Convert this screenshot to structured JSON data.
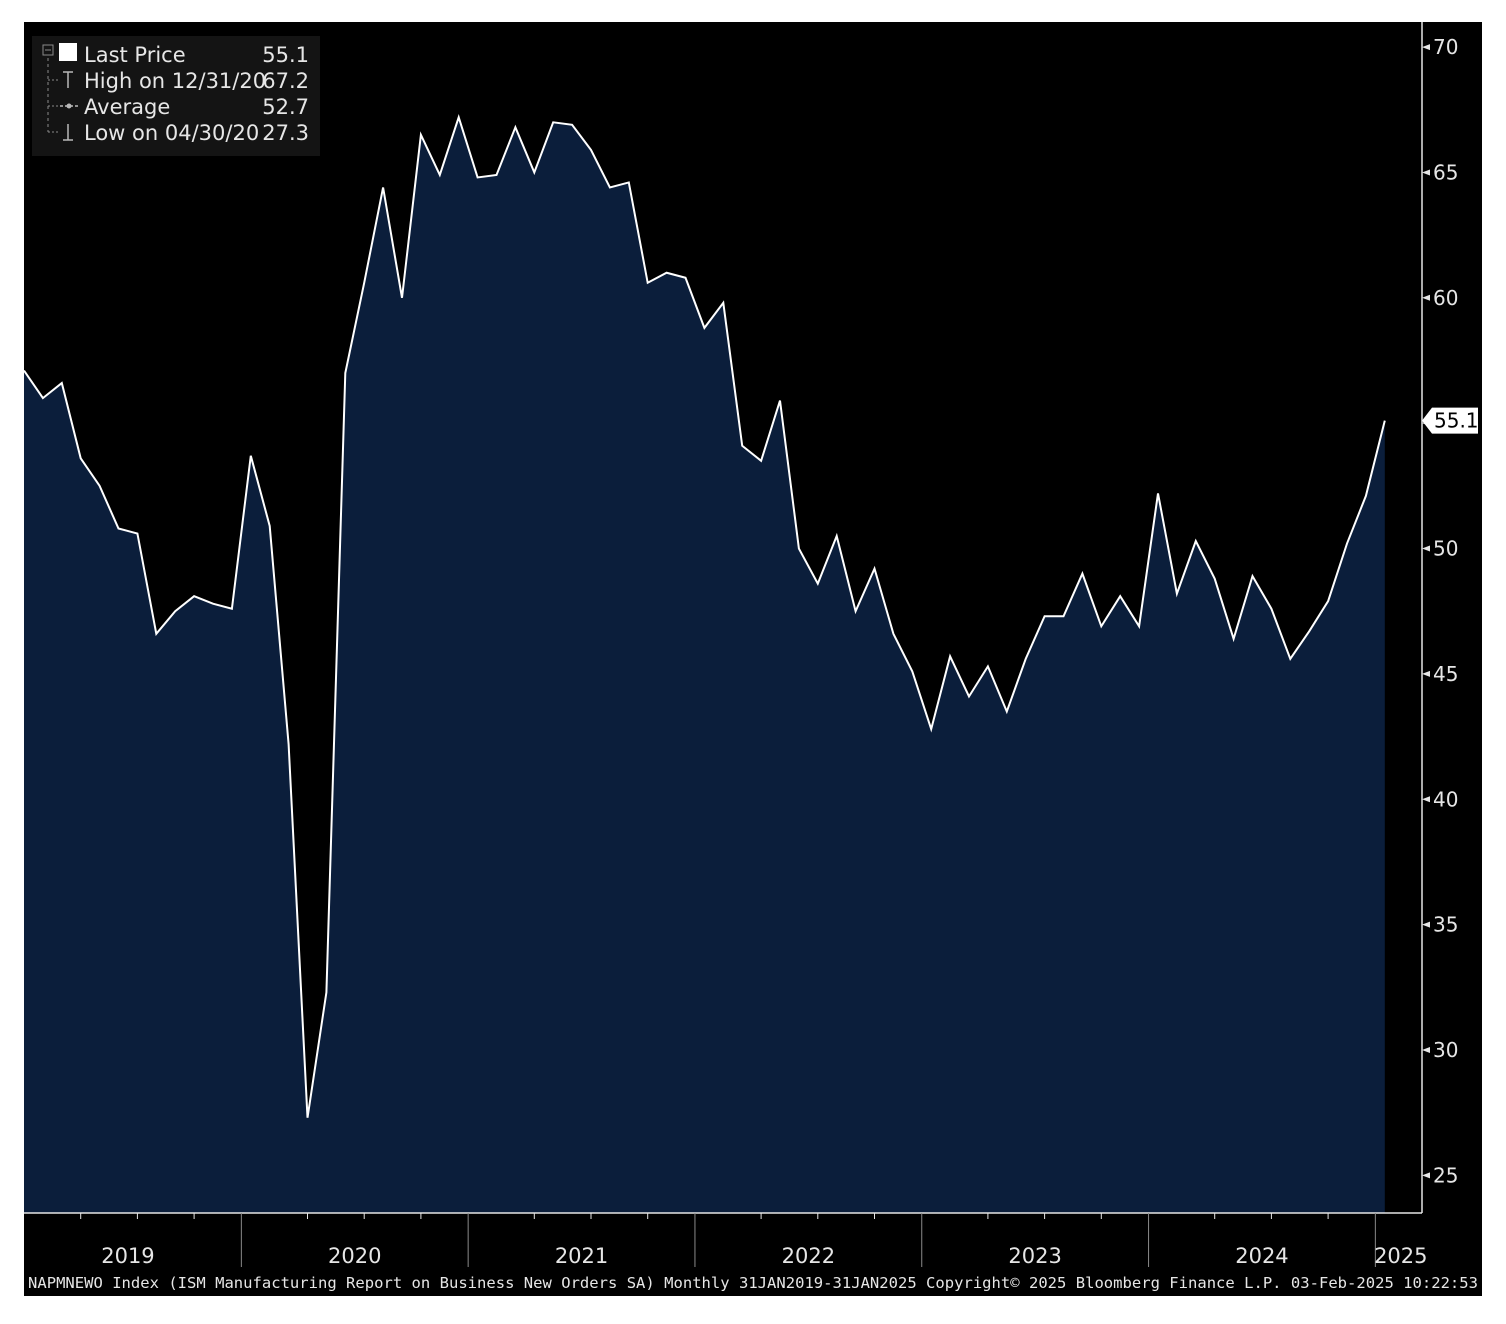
{
  "colors": {
    "background": "#000000",
    "area_fill": "#0b1e3b",
    "line": "#ffffff",
    "text": "#e6e6e6",
    "legend_box": "#141414"
  },
  "legend": {
    "last_price_label": "Last Price",
    "last_price_value": "55.1",
    "high_label": "High on 12/31/20",
    "high_value": "67.2",
    "average_label": "Average",
    "average_value": "52.7",
    "low_label": "Low on 04/30/20",
    "low_value": "27.3"
  },
  "last_value_tag": "55.1",
  "footer": "NAPMNEWO Index (ISM Manufacturing Report on Business New Orders SA)  Monthly 31JAN2019-31JAN2025 Copyright© 2025 Bloomberg Finance L.P. 03-Feb-2025 10:22:53",
  "chart_data": {
    "type": "area",
    "title": "",
    "xlabel": "",
    "ylabel": "",
    "y_axis_side": "right",
    "ylim": [
      23.5,
      71
    ],
    "yticks": [
      25,
      30,
      35,
      40,
      45,
      50,
      55,
      60,
      65,
      70
    ],
    "year_labels": [
      "2019",
      "2020",
      "2021",
      "2022",
      "2023",
      "2024",
      "2025"
    ],
    "x_start": "2019-01",
    "frequency": "monthly",
    "series": [
      {
        "values": [
          57.1,
          56.0,
          56.6,
          53.6,
          52.5,
          50.8,
          50.6,
          46.6,
          47.5,
          48.1,
          47.8,
          47.6,
          53.7,
          50.9,
          42.2,
          27.3,
          32.3,
          57.0,
          60.6,
          64.4,
          60.0,
          66.5,
          64.9,
          67.2,
          64.8,
          64.9,
          66.8,
          65.0,
          67.0,
          66.9,
          65.9,
          64.4,
          64.6,
          60.6,
          61.0,
          60.8,
          58.8,
          59.8,
          54.1,
          53.5,
          55.9,
          50.0,
          48.6,
          50.5,
          47.5,
          49.2,
          46.6,
          45.1,
          42.8,
          45.7,
          44.1,
          45.3,
          43.5,
          45.6,
          47.3,
          47.3,
          49.0,
          46.9,
          48.1,
          46.9,
          52.2,
          48.2,
          50.3,
          48.8,
          46.4,
          48.9,
          47.6,
          45.6,
          46.7,
          47.9,
          50.2,
          52.1,
          55.1
        ]
      }
    ]
  }
}
